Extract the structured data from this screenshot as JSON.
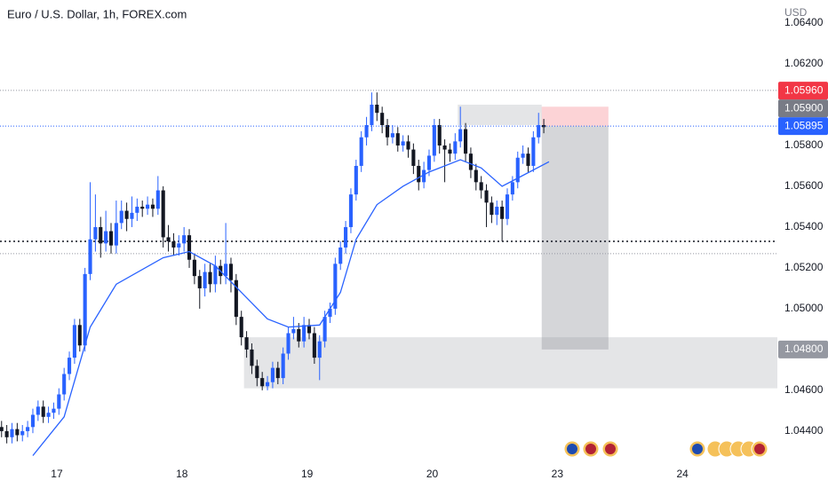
{
  "chart_data": {
    "type": "candlestick",
    "title": "Euro / U.S. Dollar, 1h, FOREX.com",
    "currency": "USD",
    "xlim": [
      -0.3,
      148.8
    ],
    "ylim": [
      1.04243,
      1.06513
    ],
    "xticks": [
      {
        "value": 10.6,
        "label": "17"
      },
      {
        "value": 34.6,
        "label": "18"
      },
      {
        "value": 58.6,
        "label": "19"
      },
      {
        "value": 82.6,
        "label": "20"
      },
      {
        "value": 106.6,
        "label": "23"
      },
      {
        "value": 130.6,
        "label": "24"
      }
    ],
    "yticks": [
      {
        "value": 1.044,
        "label": "1.04400"
      },
      {
        "value": 1.046,
        "label": "1.04600"
      },
      {
        "value": 1.048,
        "label": "1.04800"
      },
      {
        "value": 1.05,
        "label": "1.05000"
      },
      {
        "value": 1.052,
        "label": "1.05200"
      },
      {
        "value": 1.054,
        "label": "1.05400"
      },
      {
        "value": 1.056,
        "label": "1.05600"
      },
      {
        "value": 1.058,
        "label": "1.05800"
      },
      {
        "value": 1.062,
        "label": "1.06200"
      },
      {
        "value": 1.064,
        "label": "1.06400"
      }
    ],
    "up_color": "#2962ff",
    "down_color": "#131722",
    "open": [
      1.0442,
      1.044,
      1.0437,
      1.0441,
      1.0438,
      1.044,
      1.0442,
      1.0448,
      1.0452,
      1.0447,
      1.0449,
      1.0451,
      1.0458,
      1.0468,
      1.0476,
      1.0492,
      1.0482,
      1.0517,
      1.0534,
      1.054,
      1.0532,
      1.0538,
      1.0531,
      1.0542,
      1.0548,
      1.0544,
      1.0547,
      1.055,
      1.0549,
      1.0551,
      1.0549,
      1.0558,
      1.0535,
      1.0533,
      1.053,
      1.0532,
      1.0536,
      1.0524,
      1.0516,
      1.051,
      1.0518,
      1.0512,
      1.0521,
      1.0516,
      1.0522,
      1.0514,
      1.0496,
      1.0486,
      1.048,
      1.0472,
      1.0466,
      1.0462,
      1.0464,
      1.0471,
      1.0466,
      1.0478,
      1.0488,
      1.049,
      1.0484,
      1.0492,
      1.0488,
      1.0476,
      1.0484,
      1.0496,
      1.05,
      1.0522,
      1.053,
      1.054,
      1.0556,
      1.057,
      1.0584,
      1.059,
      1.06,
      1.0596,
      1.059,
      1.0584,
      1.0586,
      1.058,
      1.0582,
      1.0578,
      1.057,
      1.0562,
      1.0568,
      1.0575,
      1.059,
      1.058,
      1.0578,
      1.0576,
      1.0582,
      1.0588,
      1.0576,
      1.0568,
      1.0562,
      1.0558,
      1.0552,
      1.0546,
      1.055,
      1.0544,
      1.0556,
      1.0562,
      1.0574,
      1.0576,
      1.057,
      1.0584,
      1.059
    ],
    "high": [
      1.0445,
      1.0443,
      1.0444,
      1.0444,
      1.0443,
      1.0445,
      1.0451,
      1.0455,
      1.0455,
      1.0452,
      1.0454,
      1.0461,
      1.0471,
      1.0479,
      1.0495,
      1.0495,
      1.052,
      1.0562,
      1.0556,
      1.0545,
      1.0548,
      1.0542,
      1.0553,
      1.0553,
      1.0552,
      1.0555,
      1.0554,
      1.0553,
      1.0555,
      1.0554,
      1.0565,
      1.056,
      1.0541,
      1.0537,
      1.0536,
      1.054,
      1.0539,
      1.0527,
      1.0519,
      1.0522,
      1.0522,
      1.0526,
      1.0524,
      1.0542,
      1.0525,
      1.0517,
      1.0499,
      1.0489,
      1.0483,
      1.0475,
      1.0469,
      1.0467,
      1.0474,
      1.0474,
      1.0481,
      1.0491,
      1.0496,
      1.0493,
      1.0496,
      1.0495,
      1.0491,
      1.0487,
      1.0499,
      1.0503,
      1.0525,
      1.0533,
      1.0543,
      1.0559,
      1.0573,
      1.0587,
      1.0594,
      1.0606,
      1.0606,
      1.0599,
      1.0593,
      1.059,
      1.0589,
      1.0585,
      1.0585,
      1.0581,
      1.0573,
      1.0572,
      1.0578,
      1.0593,
      1.0593,
      1.0583,
      1.0581,
      1.0586,
      1.0599,
      1.0591,
      1.0579,
      1.0571,
      1.0565,
      1.0561,
      1.0555,
      1.0553,
      1.0553,
      1.0559,
      1.0565,
      1.0577,
      1.058,
      1.0579,
      1.0587,
      1.0596,
      1.0593
    ],
    "low": [
      1.0437,
      1.0434,
      1.0434,
      1.0435,
      1.0435,
      1.0437,
      1.0439,
      1.0445,
      1.0444,
      1.0444,
      1.0446,
      1.0448,
      1.0455,
      1.0465,
      1.0473,
      1.0479,
      1.0479,
      1.0514,
      1.0528,
      1.0525,
      1.0528,
      1.0527,
      1.0527,
      1.0539,
      1.0538,
      1.054,
      1.0543,
      1.0545,
      1.0546,
      1.0545,
      1.0546,
      1.053,
      1.0528,
      1.0526,
      1.0526,
      1.0528,
      1.052,
      1.0512,
      1.05,
      1.0506,
      1.0508,
      1.0508,
      1.0512,
      1.0512,
      1.0508,
      1.0492,
      1.0482,
      1.0476,
      1.0468,
      1.0462,
      1.046,
      1.046,
      1.0461,
      1.0463,
      1.0463,
      1.0475,
      1.0485,
      1.0481,
      1.0481,
      1.0485,
      1.0473,
      1.0465,
      1.0481,
      1.0493,
      1.0497,
      1.0519,
      1.0527,
      1.0537,
      1.0553,
      1.0567,
      1.058,
      1.0587,
      1.0592,
      1.0586,
      1.058,
      1.0581,
      1.0577,
      1.0577,
      1.0574,
      1.0566,
      1.0558,
      1.0559,
      1.0565,
      1.0572,
      1.0576,
      1.0562,
      1.0572,
      1.0573,
      1.0579,
      1.0572,
      1.0564,
      1.0558,
      1.0554,
      1.054,
      1.0542,
      1.0541,
      1.0533,
      1.0541,
      1.0553,
      1.0559,
      1.0571,
      1.0567,
      1.0567,
      1.0581,
      1.0586
    ],
    "close": [
      1.044,
      1.0437,
      1.0441,
      1.0438,
      1.044,
      1.0442,
      1.0448,
      1.0452,
      1.0447,
      1.0449,
      1.0451,
      1.0458,
      1.0468,
      1.0476,
      1.0492,
      1.0482,
      1.0517,
      1.0534,
      1.054,
      1.0532,
      1.0538,
      1.0531,
      1.0542,
      1.0548,
      1.0544,
      1.0547,
      1.055,
      1.0549,
      1.0551,
      1.0549,
      1.0558,
      1.0535,
      1.0533,
      1.053,
      1.0532,
      1.0536,
      1.0524,
      1.0516,
      1.051,
      1.0518,
      1.0512,
      1.0521,
      1.0516,
      1.0522,
      1.0514,
      1.0496,
      1.0486,
      1.048,
      1.0472,
      1.0466,
      1.0462,
      1.0464,
      1.0471,
      1.0466,
      1.0478,
      1.0488,
      1.049,
      1.0484,
      1.0492,
      1.0488,
      1.0476,
      1.0484,
      1.0496,
      1.05,
      1.0522,
      1.053,
      1.054,
      1.0556,
      1.057,
      1.0584,
      1.059,
      1.06,
      1.0596,
      1.059,
      1.0584,
      1.0586,
      1.058,
      1.0582,
      1.0578,
      1.057,
      1.0562,
      1.0568,
      1.0575,
      1.059,
      1.058,
      1.0578,
      1.0576,
      1.0582,
      1.0588,
      1.0576,
      1.0568,
      1.0562,
      1.0558,
      1.0552,
      1.0546,
      1.055,
      1.0544,
      1.0556,
      1.0562,
      1.0574,
      1.0576,
      1.057,
      1.0584,
      1.059,
      1.0589
    ],
    "ma": {
      "color": "#2962ff",
      "x": [
        6,
        12,
        17,
        22,
        31,
        36,
        41,
        46,
        51,
        55,
        61,
        65,
        68,
        72,
        77,
        82,
        88,
        92,
        96,
        99,
        105
      ],
      "values": [
        1.0428,
        1.0447,
        1.0491,
        1.0512,
        1.0525,
        1.0528,
        1.0521,
        1.0508,
        1.0495,
        1.0491,
        1.0492,
        1.0508,
        1.0534,
        1.0551,
        1.056,
        1.0567,
        1.0573,
        1.0569,
        1.056,
        1.0564,
        1.0572
      ]
    },
    "levels": [
      {
        "value": 1.0607,
        "color": "#9598a1"
      },
      {
        "value": 1.0533,
        "color": "#131722"
      },
      {
        "value": 1.0527,
        "color": "#9598a1"
      }
    ],
    "zones": [
      {
        "x": [
          46.5,
          148.8
        ],
        "y": [
          1.0461,
          1.0486
        ],
        "color": "rgba(149,152,161,0.25)"
      },
      {
        "x": [
          87.5,
          103.6
        ],
        "y": [
          1.059,
          1.06
        ],
        "color": "rgba(149,152,161,0.25)"
      },
      {
        "x": [
          103.6,
          116.4
        ],
        "y": [
          1.048,
          1.05895
        ],
        "color": "rgba(149,152,161,0.4)"
      },
      {
        "x": [
          103.6,
          116.4
        ],
        "y": [
          1.05895,
          1.0599
        ],
        "color": "rgba(242,54,69,0.22)"
      }
    ],
    "price_labels": [
      {
        "value": 1.0596,
        "label": "1.05960",
        "color": "#f23645"
      },
      {
        "value": 1.059,
        "label": "1.05900",
        "color": "#787b86"
      },
      {
        "value": 1.05895,
        "label": "1.05895",
        "color": "#2962ff",
        "line": true
      },
      {
        "value": 1.048,
        "label": "1.04800",
        "color": "#9598a1"
      }
    ]
  }
}
